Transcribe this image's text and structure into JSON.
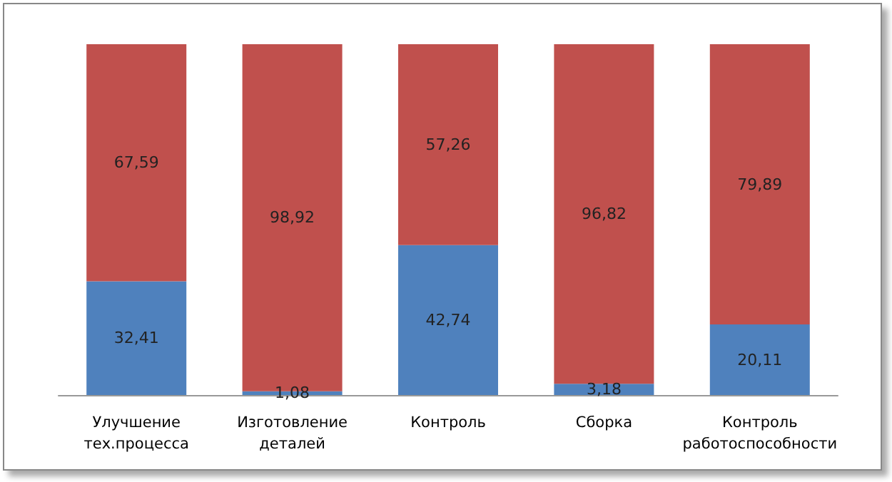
{
  "chart_data": {
    "type": "bar",
    "stacked": true,
    "grid": false,
    "tick_labels": "x",
    "categories": [
      "Улучшение тех.процесса",
      "Изготовление деталей",
      "Контроль",
      "Сборка",
      "Контроль работоспособности"
    ],
    "series": [
      {
        "color": "#4f81bd",
        "values": [
          32.41,
          1.08,
          42.74,
          3.18,
          20.11
        ],
        "value_labels": [
          "32,41",
          "1,08",
          "42,74",
          "3,18",
          "20,11"
        ]
      },
      {
        "color": "#c0504d",
        "values": [
          67.59,
          98.92,
          57.26,
          96.82,
          79.89
        ],
        "value_labels": [
          "67,59",
          "98,92",
          "57,26",
          "96,82",
          "79,89"
        ]
      }
    ]
  }
}
